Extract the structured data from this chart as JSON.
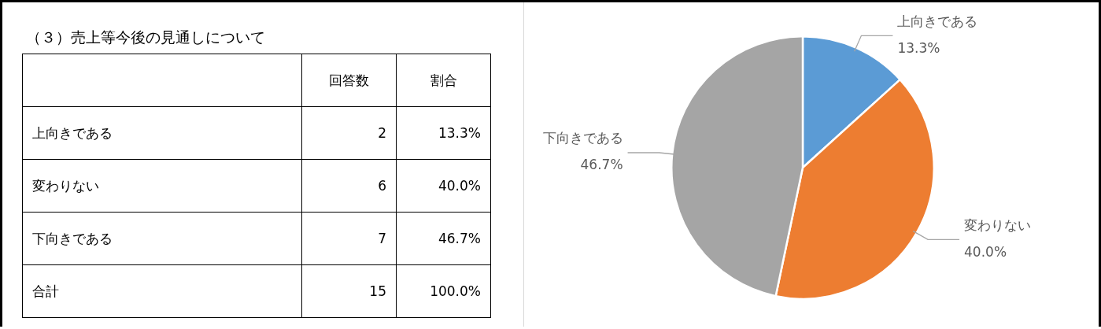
{
  "chart_data": {
    "type": "pie",
    "title": "（３）売上等今後の見通しについて",
    "categories": [
      "上向きである",
      "変わりない",
      "下向きである"
    ],
    "values": [
      13.3,
      40.0,
      46.7
    ],
    "value_labels": [
      "13.3%",
      "40.0%",
      "46.7%"
    ],
    "colors": [
      "#5b9bd5",
      "#ed7d31",
      "#a5a5a5"
    ],
    "data_labels": true,
    "annotations": [
      "回答数",
      "割合",
      "2",
      "6",
      "7",
      "合計",
      "15",
      "100.0%"
    ],
    "legend": false
  }
}
